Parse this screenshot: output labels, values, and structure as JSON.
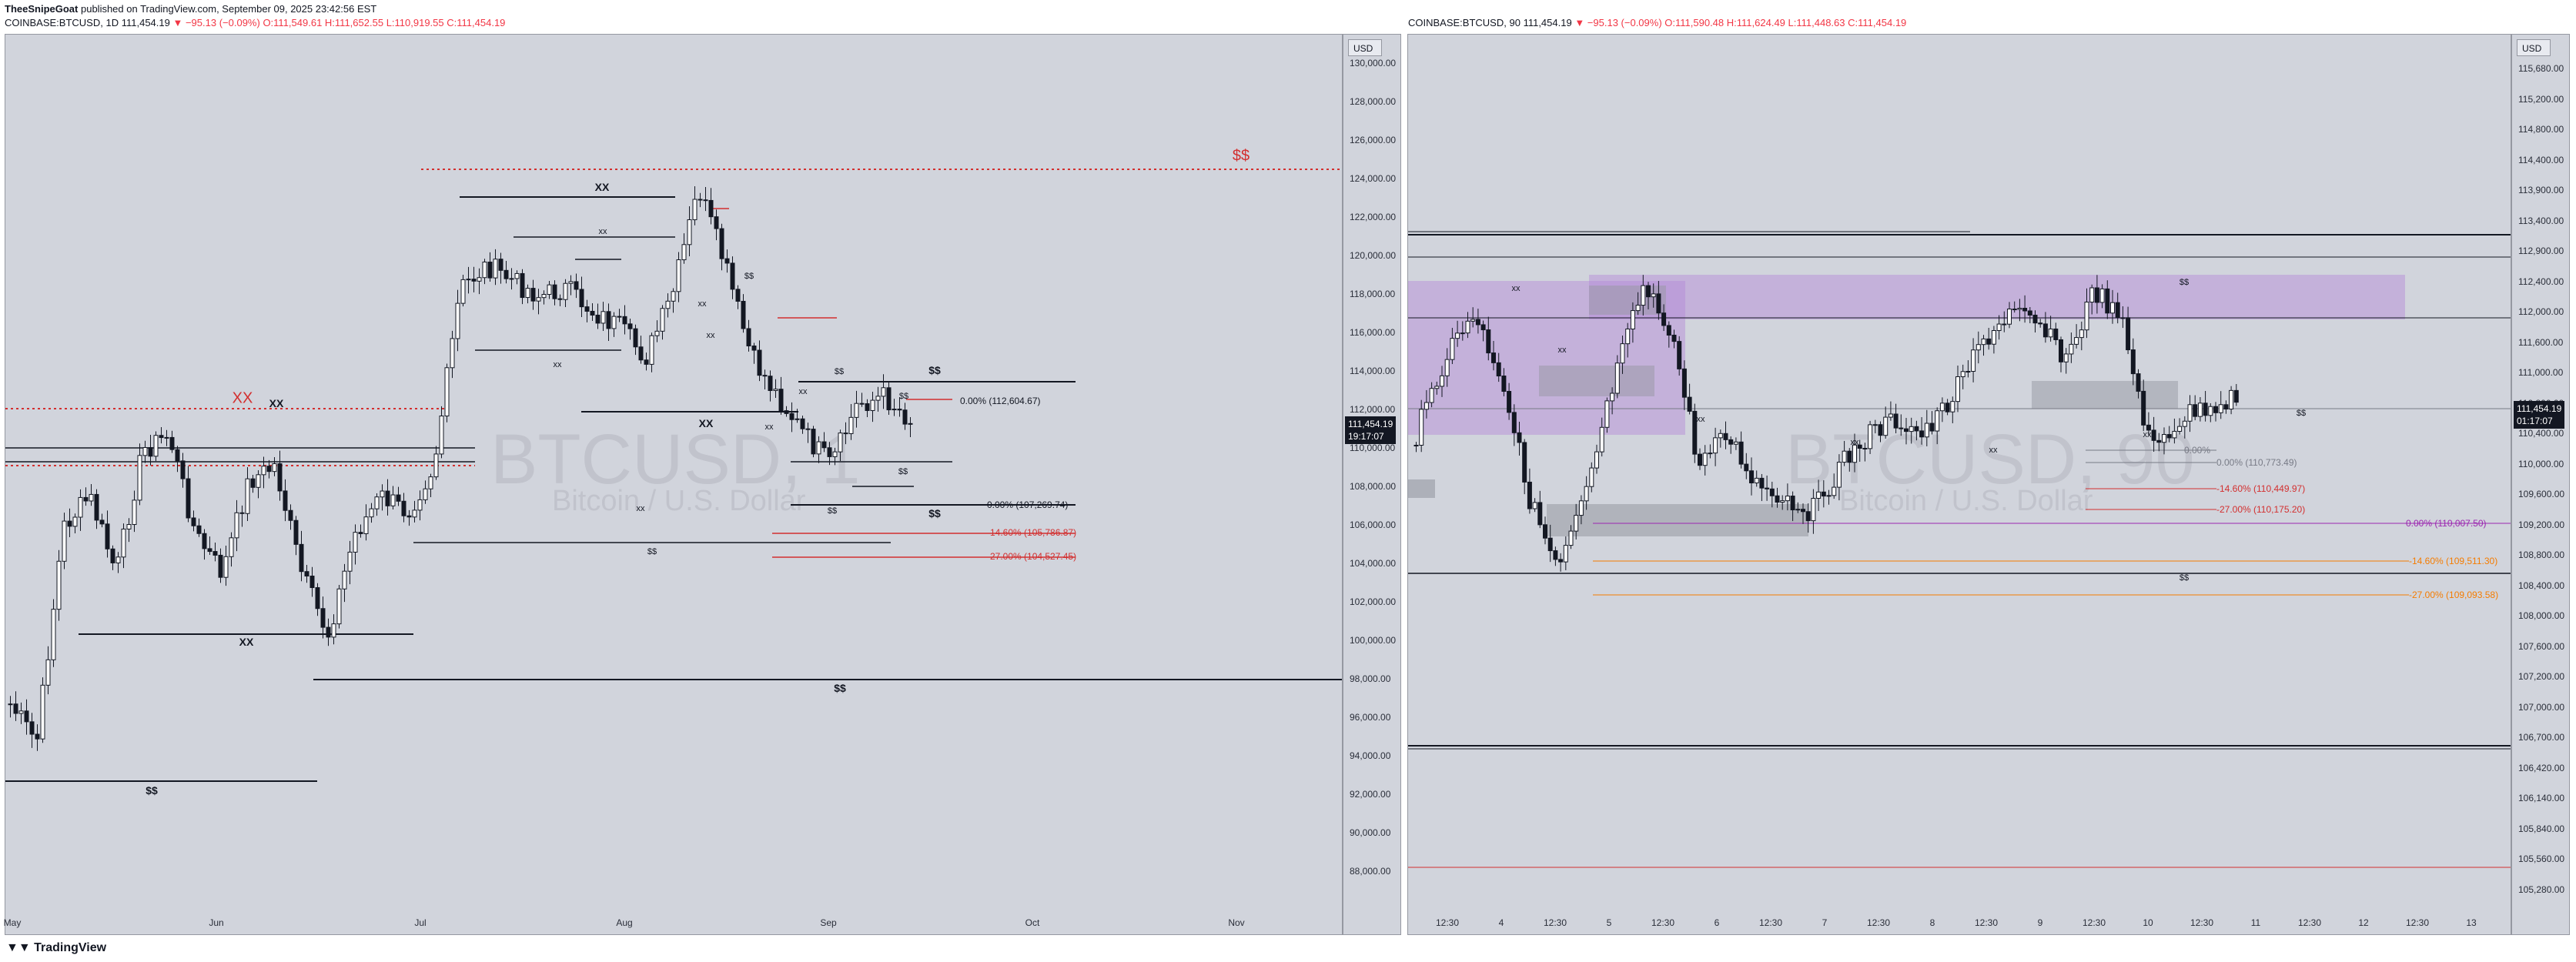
{
  "header": {
    "author": "TheeSnipeGoat",
    "published": "published on TradingView.com, September 09, 2025 23:42:56 EST"
  },
  "left_chart": {
    "symbol": "COINBASE:BTCUSD, 1D",
    "last": "111,454.19",
    "change": "▼ −95.13 (−0.09%)",
    "open": "O:111,549.61",
    "high": "H:111,652.55",
    "low": "L:110,919.55",
    "close": "C:111,454.19",
    "watermark_symbol": "BTCUSD, 1",
    "watermark_name": "Bitcoin / U.S. Dollar",
    "currency": "USD",
    "price_badge": "111,454.19",
    "countdown": "19:17:07",
    "y_ticks": [
      "130,000.00",
      "128,000.00",
      "126,000.00",
      "124,000.00",
      "122,000.00",
      "120,000.00",
      "118,000.00",
      "116,000.00",
      "114,000.00",
      "112,000.00",
      "110,000.00",
      "108,000.00",
      "106,000.00",
      "104,000.00",
      "102,000.00",
      "100,000.00",
      "98,000.00",
      "96,000.00",
      "94,000.00",
      "92,000.00",
      "90,000.00",
      "88,000.00"
    ],
    "x_ticks": [
      "May",
      "Jun",
      "Jul",
      "Aug",
      "Sep",
      "Oct",
      "Nov"
    ],
    "annotations": {
      "dollars_top": "$$",
      "xx_red": "XX",
      "xx": "XX",
      "xx_small": "xx",
      "dd": "$$",
      "dd_small": "$$"
    },
    "fibs": [
      "0.00% (112,604.67)",
      "0.00% (107,269.74)",
      "-14.60% (105,786.87)",
      "-27.00% (104,527.45)"
    ]
  },
  "right_chart": {
    "symbol": "COINBASE:BTCUSD, 90",
    "last": "111,454.19",
    "change": "▼ −95.13 (−0.09%)",
    "open": "O:111,590.48",
    "high": "H:111,624.49",
    "low": "L:111,448.63",
    "close": "C:111,454.19",
    "watermark_symbol": "BTCUSD, 90",
    "watermark_name": "Bitcoin / U.S. Dollar",
    "currency": "USD",
    "price_badge": "111,454.19",
    "countdown": "01:17:07",
    "y_ticks": [
      "115,680.00",
      "115,200.00",
      "114,800.00",
      "114,400.00",
      "113,900.00",
      "113,400.00",
      "112,900.00",
      "112,400.00",
      "112,000.00",
      "111,600.00",
      "111,000.00",
      "110,800.00",
      "110,400.00",
      "110,000.00",
      "109,600.00",
      "109,200.00",
      "108,800.00",
      "108,400.00",
      "108,000.00",
      "107,600.00",
      "107,200.00",
      "107,000.00",
      "106,700.00",
      "106,420.00",
      "106,140.00",
      "105,840.00",
      "105,560.00",
      "105,280.00"
    ],
    "x_ticks": [
      "12:30",
      "4",
      "12:30",
      "5",
      "12:30",
      "6",
      "12:30",
      "7",
      "12:30",
      "8",
      "12:30",
      "9",
      "12:30",
      "10",
      "12:30",
      "11",
      "12:30",
      "12",
      "12:30",
      "13"
    ],
    "annotations": {
      "dd": "$$",
      "xx_small": "xx"
    },
    "fibs": [
      "0.00%",
      "0.00% (110,773.49)",
      "-14.60% (110,449.97)",
      "-27.00% (110,175.20)",
      "0.00% (110,007.50)",
      "-14.60% (109,511.30)",
      "-27.00% (109,093.58)"
    ]
  },
  "footer": {
    "brand": "TradingView"
  },
  "colors": {
    "panel_bg": "#d1d4dc",
    "red_level": "#d32f2f",
    "fib_red": "#d32f2f",
    "fib_purple": "#9c27b0",
    "fib_orange": "#f57c00",
    "zone_purple": "#b388d8",
    "zone_gray": "#9598a1"
  }
}
